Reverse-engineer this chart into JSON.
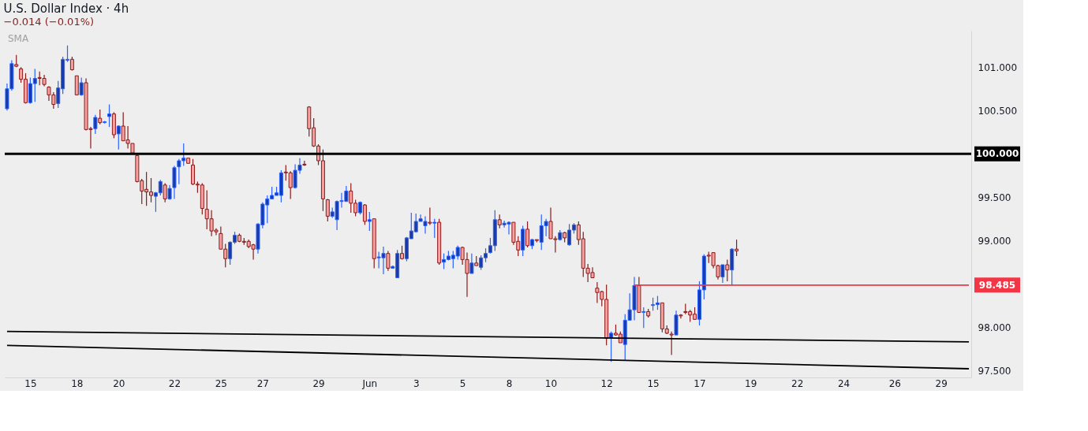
{
  "chart_data": {
    "type": "candlestick",
    "title": "U.S. Dollar Index · 4h",
    "subtitle": "−0.014 (−0.01%)",
    "annotations": [
      "SMA"
    ],
    "categories": [
      null,
      null,
      null,
      null,
      null,
      "15",
      null,
      null,
      null,
      null,
      null,
      null,
      null,
      null,
      null,
      "18",
      null,
      null,
      null,
      null,
      null,
      null,
      null,
      null,
      "20",
      null,
      null,
      null,
      null,
      null,
      null,
      null,
      null,
      null,
      null,
      null,
      "22",
      null,
      null,
      null,
      null,
      null,
      null,
      null,
      null,
      null,
      "25",
      null,
      null,
      null,
      null,
      null,
      null,
      null,
      null,
      "27",
      null,
      null,
      null,
      null,
      null,
      null,
      null,
      null,
      null,
      null,
      null,
      "29",
      null,
      null,
      null,
      null,
      null,
      null,
      null,
      null,
      null,
      null,
      "Jun",
      null,
      null,
      null,
      null,
      null,
      null,
      null,
      null,
      null,
      "3",
      null,
      null,
      null,
      null,
      null,
      null,
      null,
      null,
      null,
      "5",
      null,
      null,
      null,
      null,
      null,
      null,
      null,
      null,
      null,
      "8",
      null,
      null,
      null,
      null,
      null,
      null,
      null,
      null,
      "10",
      null,
      null,
      null,
      null,
      null,
      null,
      null,
      null,
      null,
      null,
      null,
      "12",
      null,
      null,
      null,
      null,
      null,
      null,
      null,
      null,
      null,
      "15",
      null,
      null,
      null,
      null,
      null,
      null,
      null,
      null,
      null,
      "17",
      null,
      null,
      null,
      null,
      null,
      null,
      null,
      null,
      null,
      null,
      "19",
      null,
      null,
      null,
      null,
      null,
      null,
      null,
      null,
      null,
      "22",
      null,
      null,
      null,
      null,
      null,
      null,
      null,
      null,
      null,
      "24",
      null,
      null,
      null,
      null,
      null,
      null,
      null,
      null,
      null,
      null,
      "26",
      null,
      null,
      null,
      null,
      null,
      null,
      null,
      null,
      null,
      "29",
      null,
      null,
      null,
      null,
      null,
      null
    ],
    "ohlc": [
      [
        100.52,
        100.81,
        100.5,
        100.75
      ],
      [
        100.75,
        101.08,
        100.73,
        101.04
      ],
      [
        101.03,
        101.14,
        101.0,
        101.01
      ],
      [
        100.98,
        101.0,
        100.82,
        100.86
      ],
      [
        100.86,
        100.93,
        100.58,
        100.59
      ],
      [
        100.59,
        100.88,
        100.58,
        100.81
      ],
      [
        100.81,
        100.98,
        100.6,
        100.87
      ],
      [
        100.88,
        100.95,
        100.79,
        100.87
      ],
      [
        100.87,
        100.91,
        100.78,
        100.8
      ],
      [
        100.77,
        100.78,
        100.61,
        100.68
      ],
      [
        100.68,
        100.71,
        100.52,
        100.57
      ],
      [
        100.58,
        100.84,
        100.53,
        100.76
      ],
      [
        100.75,
        101.12,
        100.69,
        101.09
      ],
      [
        101.08,
        101.25,
        101.06,
        101.09
      ],
      [
        101.09,
        101.12,
        100.96,
        100.97
      ],
      [
        100.9,
        100.9,
        100.68,
        100.68
      ],
      [
        100.68,
        100.88,
        100.67,
        100.82
      ],
      [
        100.82,
        100.87,
        100.27,
        100.28
      ],
      [
        100.29,
        100.31,
        100.06,
        100.28
      ],
      [
        100.29,
        100.45,
        100.23,
        100.42
      ],
      [
        100.41,
        100.51,
        100.34,
        100.36
      ],
      [
        100.36,
        100.38,
        100.35,
        100.37
      ],
      [
        100.43,
        100.57,
        100.31,
        100.46
      ],
      [
        100.46,
        100.48,
        100.18,
        100.22
      ],
      [
        100.23,
        100.33,
        100.05,
        100.32
      ],
      [
        100.32,
        100.48,
        100.15,
        100.15
      ],
      [
        100.16,
        100.32,
        100.06,
        100.12
      ],
      [
        100.12,
        100.12,
        100.0,
        100.01
      ],
      [
        99.98,
        99.99,
        99.67,
        99.68
      ],
      [
        99.69,
        99.71,
        99.42,
        99.57
      ],
      [
        99.59,
        99.79,
        99.4,
        99.56
      ],
      [
        99.56,
        99.72,
        99.44,
        99.52
      ],
      [
        99.51,
        99.56,
        99.33,
        99.55
      ],
      [
        99.55,
        99.7,
        99.52,
        99.68
      ],
      [
        99.64,
        99.66,
        99.44,
        99.48
      ],
      [
        99.48,
        99.64,
        99.47,
        99.6
      ],
      [
        99.61,
        99.86,
        99.48,
        99.84
      ],
      [
        99.85,
        99.94,
        99.65,
        99.92
      ],
      [
        99.92,
        100.12,
        99.86,
        99.95
      ],
      [
        99.95,
        99.95,
        99.89,
        99.89
      ],
      [
        99.87,
        99.94,
        99.64,
        99.65
      ],
      [
        99.65,
        99.68,
        99.55,
        99.64
      ],
      [
        99.64,
        99.66,
        99.3,
        99.37
      ],
      [
        99.36,
        99.58,
        99.13,
        99.25
      ],
      [
        99.25,
        99.35,
        99.05,
        99.11
      ],
      [
        99.12,
        99.14,
        99.06,
        99.1
      ],
      [
        99.08,
        99.16,
        98.9,
        98.9
      ],
      [
        98.9,
        98.96,
        98.69,
        98.79
      ],
      [
        98.79,
        98.99,
        98.72,
        98.98
      ],
      [
        98.98,
        99.1,
        98.96,
        99.06
      ],
      [
        99.06,
        99.08,
        98.98,
        98.99
      ],
      [
        98.99,
        99.03,
        98.95,
        98.98
      ],
      [
        98.99,
        99.01,
        98.91,
        98.93
      ],
      [
        98.95,
        98.96,
        98.78,
        98.9
      ],
      [
        98.9,
        99.2,
        98.85,
        99.19
      ],
      [
        99.18,
        99.44,
        99.14,
        99.42
      ],
      [
        99.41,
        99.52,
        99.2,
        99.48
      ],
      [
        99.48,
        99.62,
        99.48,
        99.52
      ],
      [
        99.52,
        99.62,
        99.52,
        99.55
      ],
      [
        99.52,
        99.81,
        99.44,
        99.78
      ],
      [
        99.79,
        99.87,
        99.69,
        99.78
      ],
      [
        99.78,
        99.8,
        99.48,
        99.61
      ],
      [
        99.61,
        99.88,
        99.6,
        99.81
      ],
      [
        99.81,
        99.95,
        99.77,
        99.87
      ],
      [
        99.88,
        99.92,
        99.86,
        99.87
      ],
      [
        100.54,
        100.55,
        100.2,
        100.29
      ],
      [
        100.3,
        100.41,
        100.08,
        100.09
      ],
      [
        100.09,
        100.11,
        99.87,
        99.92
      ],
      [
        99.92,
        100.05,
        99.34,
        99.48
      ],
      [
        99.47,
        99.48,
        99.22,
        99.28
      ],
      [
        99.28,
        99.38,
        99.26,
        99.33
      ],
      [
        99.24,
        99.46,
        99.12,
        99.45
      ],
      [
        99.45,
        99.55,
        99.38,
        99.46
      ],
      [
        99.45,
        99.63,
        99.45,
        99.57
      ],
      [
        99.57,
        99.66,
        99.32,
        99.43
      ],
      [
        99.43,
        99.47,
        99.28,
        99.32
      ],
      [
        99.32,
        99.45,
        99.3,
        99.44
      ],
      [
        99.41,
        99.42,
        99.18,
        99.22
      ],
      [
        99.22,
        99.33,
        99.11,
        99.24
      ],
      [
        99.25,
        99.25,
        98.68,
        98.79
      ],
      [
        98.8,
        98.87,
        98.68,
        98.81
      ],
      [
        98.8,
        98.93,
        98.61,
        98.85
      ],
      [
        98.85,
        98.88,
        98.65,
        98.68
      ],
      [
        98.68,
        98.71,
        98.68,
        98.7
      ],
      [
        98.57,
        98.89,
        98.57,
        98.85
      ],
      [
        98.85,
        98.94,
        98.78,
        98.79
      ],
      [
        98.79,
        99.04,
        98.76,
        99.03
      ],
      [
        99.02,
        99.32,
        99.02,
        99.11
      ],
      [
        99.1,
        99.31,
        99.1,
        99.22
      ],
      [
        99.22,
        99.3,
        99.22,
        99.25
      ],
      [
        99.17,
        99.28,
        99.08,
        99.22
      ],
      [
        99.21,
        99.38,
        99.18,
        99.2
      ],
      [
        99.2,
        99.25,
        99.03,
        99.21
      ],
      [
        99.21,
        99.25,
        98.72,
        98.74
      ],
      [
        98.75,
        98.85,
        98.67,
        98.78
      ],
      [
        98.78,
        98.88,
        98.77,
        98.82
      ],
      [
        98.79,
        98.88,
        98.68,
        98.83
      ],
      [
        98.82,
        98.94,
        98.78,
        98.92
      ],
      [
        98.92,
        98.93,
        98.72,
        98.78
      ],
      [
        98.78,
        98.86,
        98.35,
        98.62
      ],
      [
        98.62,
        98.85,
        98.62,
        98.74
      ],
      [
        98.74,
        98.82,
        98.71,
        98.71
      ],
      [
        98.69,
        98.83,
        98.66,
        98.8
      ],
      [
        98.8,
        98.91,
        98.75,
        98.85
      ],
      [
        98.86,
        99.03,
        98.85,
        98.94
      ],
      [
        98.94,
        99.35,
        98.88,
        99.24
      ],
      [
        99.24,
        99.3,
        99.14,
        99.18
      ],
      [
        99.18,
        99.23,
        99.15,
        99.2
      ],
      [
        99.19,
        99.22,
        99.07,
        99.21
      ],
      [
        99.21,
        99.21,
        98.95,
        98.98
      ],
      [
        98.99,
        99.05,
        98.82,
        98.89
      ],
      [
        98.89,
        99.17,
        98.82,
        99.13
      ],
      [
        99.13,
        99.22,
        98.92,
        98.94
      ],
      [
        98.94,
        99.02,
        98.9,
        99.01
      ],
      [
        99.01,
        99.01,
        98.98,
        99.0
      ],
      [
        98.98,
        99.3,
        98.89,
        99.17
      ],
      [
        99.17,
        99.25,
        99.05,
        99.22
      ],
      [
        99.22,
        99.38,
        99.02,
        99.02
      ],
      [
        99.02,
        99.05,
        98.86,
        99.01
      ],
      [
        99.01,
        99.12,
        99.0,
        99.09
      ],
      [
        99.09,
        99.1,
        98.98,
        99.03
      ],
      [
        98.95,
        99.19,
        98.94,
        99.12
      ],
      [
        99.12,
        99.2,
        99.08,
        99.18
      ],
      [
        99.18,
        99.22,
        98.95,
        99.01
      ],
      [
        99.02,
        99.1,
        98.58,
        98.68
      ],
      [
        98.68,
        98.73,
        98.52,
        98.62
      ],
      [
        98.63,
        98.69,
        98.57,
        98.57
      ],
      [
        98.45,
        98.52,
        98.28,
        98.4
      ],
      [
        98.41,
        98.42,
        98.24,
        98.32
      ],
      [
        98.32,
        98.49,
        97.79,
        97.87
      ],
      [
        97.88,
        97.95,
        97.6,
        97.93
      ],
      [
        97.93,
        98.03,
        97.9,
        97.91
      ],
      [
        97.92,
        97.95,
        97.82,
        97.82
      ],
      [
        97.8,
        98.15,
        97.62,
        98.08
      ],
      [
        98.08,
        98.39,
        98.08,
        98.2
      ],
      [
        98.2,
        98.58,
        98.08,
        98.48
      ],
      [
        98.48,
        98.58,
        98.17,
        98.17
      ],
      [
        98.17,
        98.23,
        97.99,
        98.18
      ],
      [
        98.18,
        98.21,
        98.11,
        98.13
      ],
      [
        98.25,
        98.34,
        98.19,
        98.26
      ],
      [
        98.26,
        98.36,
        98.2,
        98.28
      ],
      [
        98.28,
        98.28,
        97.94,
        97.98
      ],
      [
        97.98,
        98.02,
        97.92,
        97.93
      ],
      [
        97.92,
        97.95,
        97.68,
        97.91
      ],
      [
        97.91,
        98.19,
        97.91,
        98.14
      ],
      [
        98.14,
        98.15,
        98.1,
        98.13
      ],
      [
        98.18,
        98.27,
        98.15,
        98.17
      ],
      [
        98.18,
        98.2,
        98.06,
        98.14
      ],
      [
        98.15,
        98.23,
        98.09,
        98.09
      ],
      [
        98.09,
        98.53,
        98.02,
        98.43
      ],
      [
        98.43,
        98.84,
        98.32,
        98.82
      ],
      [
        98.83,
        98.87,
        98.74,
        98.82
      ],
      [
        98.86,
        98.86,
        98.68,
        98.71
      ],
      [
        98.71,
        98.72,
        98.55,
        98.58
      ],
      [
        98.58,
        98.72,
        98.51,
        98.72
      ],
      [
        98.72,
        98.78,
        98.53,
        98.66
      ],
      [
        98.66,
        98.91,
        98.48,
        98.9
      ],
      [
        98.9,
        99.01,
        98.82,
        98.88
      ],
      null,
      null,
      null,
      null,
      null,
      null,
      null,
      null,
      null,
      null,
      null,
      null,
      null,
      null,
      null,
      null,
      null,
      null,
      null,
      null,
      null,
      null,
      null,
      null,
      null,
      null,
      null,
      null,
      null,
      null,
      null,
      null,
      null,
      null,
      null,
      null,
      null,
      null,
      null,
      null,
      null,
      null,
      null,
      null,
      null,
      null,
      null,
      null,
      null,
      null
    ],
    "series": [
      {
        "type": "line",
        "color": "#000000",
        "values": [
          97.95,
          null,
          null,
          null,
          null,
          null,
          null,
          null,
          null,
          null,
          null,
          null,
          null,
          null,
          null,
          null,
          null,
          null,
          null,
          null,
          null,
          null,
          null,
          null,
          null,
          null,
          null,
          null,
          null,
          null,
          null,
          null,
          null,
          null,
          null,
          null,
          null,
          null,
          null,
          null,
          null,
          null,
          null,
          null,
          null,
          null,
          null,
          null,
          null,
          null,
          null,
          null,
          null,
          null,
          null,
          null,
          null,
          null,
          null,
          null,
          null,
          null,
          null,
          null,
          null,
          null,
          null,
          null,
          null,
          null,
          null,
          null,
          null,
          null,
          null,
          null,
          null,
          null,
          null,
          null,
          null,
          null,
          null,
          null,
          null,
          null,
          null,
          null,
          null,
          null,
          null,
          null,
          null,
          null,
          null,
          null,
          null,
          null,
          null,
          null,
          null,
          null,
          null,
          null,
          null,
          null,
          null,
          null,
          null,
          null,
          null,
          null,
          null,
          null,
          null,
          null,
          null,
          null,
          null,
          null,
          null,
          null,
          null,
          null,
          null,
          null,
          null,
          null,
          null,
          null,
          null,
          null,
          null,
          null,
          null,
          null,
          null,
          null,
          null,
          null,
          null,
          null,
          null,
          null,
          null,
          null,
          null,
          null,
          null,
          null,
          null,
          null,
          null,
          null,
          null,
          null,
          null,
          null,
          null,
          null,
          null,
          null,
          null,
          null,
          null,
          null,
          null,
          null,
          null,
          null,
          null,
          null,
          null,
          null,
          null,
          null,
          null,
          null,
          null,
          null,
          null,
          null,
          null,
          null,
          null,
          null,
          null,
          null,
          null,
          null,
          null,
          null,
          null,
          null,
          null,
          null,
          null,
          null,
          null,
          null,
          null,
          null,
          null,
          null,
          null,
          null,
          null,
          97.83
        ]
      },
      {
        "type": "line",
        "color": "#000000",
        "values": [
          97.79,
          null,
          null,
          null,
          null,
          null,
          null,
          null,
          null,
          null,
          null,
          null,
          null,
          null,
          null,
          null,
          null,
          null,
          null,
          null,
          null,
          null,
          null,
          null,
          null,
          null,
          null,
          null,
          null,
          null,
          null,
          null,
          null,
          null,
          null,
          null,
          null,
          null,
          null,
          null,
          null,
          null,
          null,
          null,
          null,
          null,
          null,
          null,
          null,
          null,
          null,
          null,
          null,
          null,
          null,
          null,
          null,
          null,
          null,
          null,
          null,
          null,
          null,
          null,
          null,
          null,
          null,
          null,
          null,
          null,
          null,
          null,
          null,
          null,
          null,
          null,
          null,
          null,
          null,
          null,
          null,
          null,
          null,
          null,
          null,
          null,
          null,
          null,
          null,
          null,
          null,
          null,
          null,
          null,
          null,
          null,
          null,
          null,
          null,
          null,
          null,
          null,
          null,
          null,
          null,
          null,
          null,
          null,
          null,
          null,
          null,
          null,
          null,
          null,
          null,
          null,
          null,
          null,
          null,
          null,
          null,
          null,
          null,
          null,
          null,
          null,
          null,
          null,
          null,
          null,
          null,
          null,
          null,
          null,
          null,
          null,
          null,
          null,
          null,
          null,
          null,
          null,
          null,
          null,
          null,
          null,
          null,
          null,
          null,
          null,
          null,
          null,
          null,
          null,
          null,
          null,
          null,
          null,
          null,
          null,
          null,
          null,
          null,
          null,
          null,
          null,
          null,
          null,
          null,
          null,
          null,
          null,
          null,
          null,
          null,
          null,
          null,
          null,
          null,
          null,
          null,
          null,
          null,
          null,
          null,
          null,
          null,
          null,
          null,
          null,
          null,
          null,
          null,
          null,
          null,
          null,
          null,
          null,
          null,
          null,
          null,
          null,
          null,
          null,
          null,
          null,
          null,
          97.52
        ]
      },
      {
        "type": "line",
        "name": "98.485",
        "color": "#f23645",
        "values": [
          null,
          null,
          null,
          null,
          null,
          null,
          null,
          null,
          null,
          null,
          null,
          null,
          null,
          null,
          null,
          null,
          null,
          null,
          null,
          null,
          null,
          null,
          null,
          null,
          null,
          null,
          null,
          null,
          null,
          null,
          null,
          null,
          null,
          null,
          null,
          null,
          null,
          null,
          null,
          null,
          null,
          null,
          null,
          null,
          null,
          null,
          null,
          null,
          null,
          null,
          null,
          null,
          null,
          null,
          null,
          null,
          null,
          null,
          null,
          null,
          null,
          null,
          null,
          null,
          null,
          null,
          null,
          null,
          null,
          null,
          null,
          null,
          null,
          null,
          null,
          null,
          null,
          null,
          null,
          null,
          null,
          null,
          null,
          null,
          null,
          null,
          null,
          null,
          null,
          null,
          null,
          null,
          null,
          null,
          null,
          null,
          null,
          null,
          null,
          null,
          null,
          null,
          null,
          null,
          null,
          null,
          null,
          null,
          null,
          null,
          null,
          null,
          null,
          null,
          null,
          null,
          null,
          null,
          null,
          null,
          null,
          null,
          null,
          null,
          null,
          null,
          null,
          null,
          null,
          null,
          null,
          null,
          null,
          null,
          null,
          98.485,
          null,
          null,
          null,
          null,
          null,
          null,
          null,
          null,
          null,
          null,
          null,
          null,
          null,
          null,
          null,
          null,
          null,
          null,
          null,
          null,
          null,
          null,
          null,
          null,
          null,
          null,
          null,
          null,
          null,
          null,
          null,
          null,
          null,
          null,
          null,
          null,
          null,
          null,
          null,
          null,
          null,
          null,
          null,
          null,
          null,
          null,
          null,
          null,
          null,
          null,
          null,
          null,
          null,
          null,
          null,
          null,
          null,
          null,
          null,
          null,
          null,
          null,
          null,
          null,
          null,
          null,
          null,
          null,
          null,
          null,
          null,
          98.485
        ]
      }
    ],
    "ref_lines": [
      {
        "axis": "y",
        "value": 100,
        "label": "100.000",
        "color": "#000000"
      }
    ],
    "ylim": [
      97.42,
      101.42
    ],
    "yticks": [
      {
        "value": 97.5,
        "label": "97.500"
      },
      {
        "value": 98,
        "label": "98.000"
      },
      {
        "value": 99,
        "label": "99.000"
      },
      {
        "value": 99.5,
        "label": "99.500"
      },
      {
        "value": 100.5,
        "label": "100.500"
      },
      {
        "value": 101,
        "label": "101.000"
      }
    ]
  }
}
